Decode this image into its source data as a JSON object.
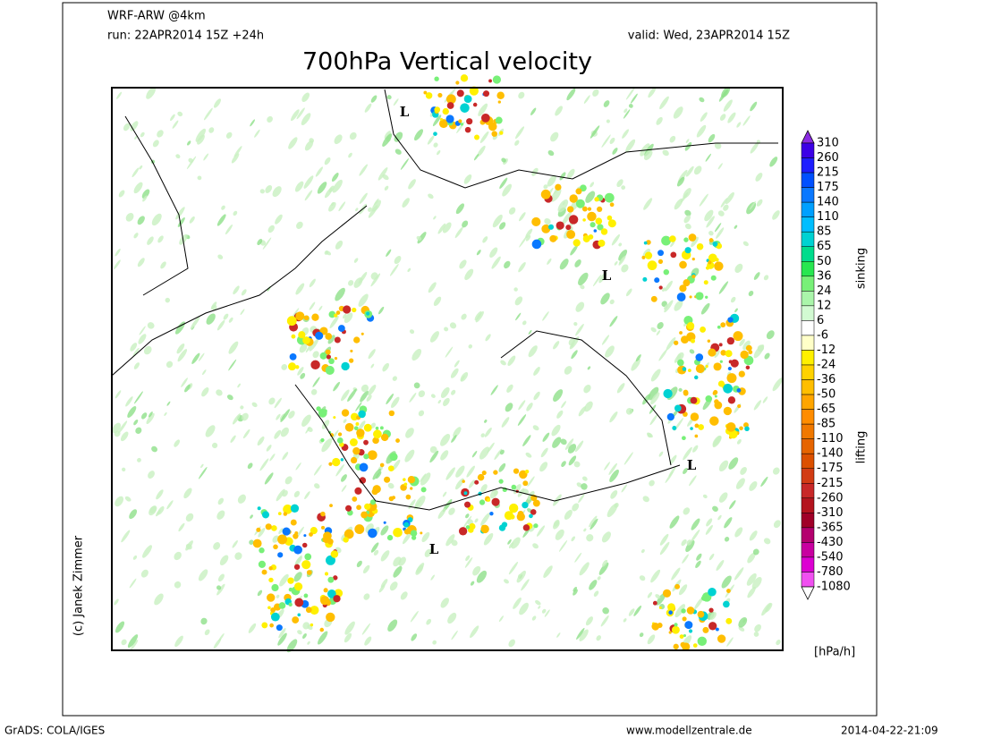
{
  "header": {
    "model": "WRF-ARW @4km",
    "run": "run: 22APR2014 15Z +24h",
    "valid": "valid: Wed, 23APR2014 15Z",
    "title": "700hPa Vertical velocity"
  },
  "map": {
    "pressure_labels": [
      "L",
      "L",
      "L",
      "L"
    ]
  },
  "colorbar": {
    "levels": [
      310,
      260,
      215,
      175,
      140,
      110,
      85,
      65,
      50,
      36,
      24,
      12,
      6,
      -6,
      -12,
      -24,
      -36,
      -50,
      -65,
      -85,
      -110,
      -140,
      -175,
      -215,
      -260,
      -310,
      -365,
      -430,
      -540,
      -780,
      -1080
    ],
    "colors": [
      "#8a2be2",
      "#3c00e6",
      "#1e1eff",
      "#0050ff",
      "#0a78ff",
      "#00a0ff",
      "#00beff",
      "#00d2d2",
      "#00dc8c",
      "#28e650",
      "#78f078",
      "#aaf5aa",
      "#d2fad2",
      "#ffffff",
      "#ffffc8",
      "#fff000",
      "#ffd200",
      "#ffbe00",
      "#ffa500",
      "#ff8c00",
      "#f07800",
      "#e66400",
      "#dc5000",
      "#d23c14",
      "#c82828",
      "#b4141e",
      "#a00028",
      "#b4006e",
      "#c800a0",
      "#dc00d2",
      "#f050f0",
      "#ffc8ff",
      "#ffffff"
    ],
    "upper_note": "sinking",
    "lower_note": "lifting",
    "unit": "[hPa/h]"
  },
  "credit": "(c) Janek Zimmer",
  "footer": {
    "software": "GrADS: COLA/IGES",
    "site": "www.modellzentrale.de",
    "timestamp": "2014-04-22-21:09"
  }
}
